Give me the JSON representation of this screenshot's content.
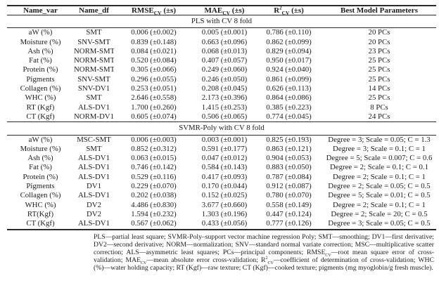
{
  "colors": {
    "background": "#ffffff",
    "text": "#1c1c1c",
    "rule": "#2a2a2a"
  },
  "table": {
    "column_keys": [
      "name_var",
      "name_df",
      "rmse_cv",
      "mae_cv",
      "r2_cv",
      "best_model_parameters"
    ],
    "columns": [
      {
        "segments": [
          {
            "t": "Name_var"
          }
        ]
      },
      {
        "segments": [
          {
            "t": "Name_df"
          }
        ]
      },
      {
        "segments": [
          {
            "t": "RMSE"
          },
          {
            "t": "CV",
            "s": "sub"
          },
          {
            "t": " (±s)"
          }
        ]
      },
      {
        "segments": [
          {
            "t": "MAE"
          },
          {
            "t": "CV",
            "s": "sub"
          },
          {
            "t": " (±s)"
          }
        ]
      },
      {
        "segments": [
          {
            "t": "R"
          },
          {
            "t": "2",
            "s": "sup"
          },
          {
            "t": "CV",
            "s": "sub"
          },
          {
            "t": " (±s)"
          }
        ]
      },
      {
        "segments": [
          {
            "t": "Best Model Parameters"
          }
        ]
      }
    ],
    "sections": [
      {
        "title": "PLS with CV 8 fold",
        "rows": [
          [
            "aW (%)",
            "SMT",
            "0.006 (±0.002)",
            "0.005 (±0.001)",
            "0.786 (±0.110)",
            "20 PCs"
          ],
          [
            "Moisture (%)",
            "SNV-SMT",
            "0.839 (±0.148)",
            "0.663 (±0.096)",
            "0.862 (±0.099)",
            "20 PCs"
          ],
          [
            "Ash (%)",
            "NORM-SMT",
            "0.084 (±0.021)",
            "0.068 (±0.013)",
            "0.829 (±0.094)",
            "23 PCs"
          ],
          [
            "Fat (%)",
            "NORM-SMT",
            "0.520 (±0.084)",
            "0.407 (±0.057)",
            "0.950 (±0.017)",
            "25 PCs"
          ],
          [
            "Protein (%)",
            "NORM-SMT",
            "0.305 (±0.066)",
            "0.249 (±0.060)",
            "0.924 (±0.040)",
            "25 PCs"
          ],
          [
            "Pigments",
            "SNV-SMT",
            "0.296 (±0.055)",
            "0.246 (±0.050)",
            "0.861 (±0.099)",
            "25 PCs"
          ],
          [
            "Collagen (%)",
            "SNV-DV1",
            "0.253 (±0.051)",
            "0.208 (±0.045)",
            "0.626 (±0.113)",
            "14 PCs"
          ],
          [
            "WHC (%)",
            "SMT",
            "2.646 (±0.558)",
            "2.173 (±0.396)",
            "0.864 (±0.086)",
            "25 PCs"
          ],
          [
            "RT (Kgf)",
            "ALS-DV1",
            "1.700 (±0.260)",
            "1.415 (±0.253)",
            "0.385 (±0.223)",
            "8 PCs"
          ],
          [
            "CT (Kgf)",
            "NORM-DV1",
            "0.605 (±0.074)",
            "0.506 (±0.065)",
            "0.774 (±0.045)",
            "24 PCs"
          ]
        ]
      },
      {
        "title": "SVMR-Poly with CV 8 fold",
        "rows": [
          [
            "aW (%)",
            "MSC-SMT",
            "0.006 (±0.003)",
            "0.003 (±0.001)",
            "0.825 (±0.193)",
            "Degree = 3; Scale = 0.05; C = 1.3"
          ],
          [
            "Moisture (%)",
            "SMT",
            "0.852 (±0.312)",
            "0.591 (±0.177)",
            "0.863 (±0.121)",
            "Degree = 3; Scale = 0.1; C = 1"
          ],
          [
            "Ash (%)",
            "ALS-DV1",
            "0.063 (±0.015)",
            "0.047 (±0.012)",
            "0.904 (±0.053)",
            "Degree = 5; Scale = 0.007; C = 0.6"
          ],
          [
            "Fat (%)",
            "ALS-DV1",
            "0.746 (±0.142)",
            "0.584 (±0.143)",
            "0.883 (±0.050)",
            "Degree = 2; Scale = 0.1; C = 0.1"
          ],
          [
            "Protein (%)",
            "ALS-DV1",
            "0.529 (±0.116)",
            "0.417 (±0.093)",
            "0.787 (±0.084)",
            "Degree = 2; Scale = 0.1; C = 1"
          ],
          [
            "Pigments",
            "DV1",
            "0.229 (±0.070)",
            "0.170 (±0.044)",
            "0.912 (±0.087)",
            "Degree = 2; Scale = 0.05; C = 0.5"
          ],
          [
            "Collagen (%)",
            "ALS-DV1",
            "0.202 (±0.038)",
            "0.152 (±0.025)",
            "0.780 (±0.070)",
            "Degree = 5; Scale = 0.01; C = 0.5"
          ],
          [
            "WHC (%)",
            "DV2",
            "4.486 (±0.830)",
            "3.677 (±0.660)",
            "0.558 (±0.149)",
            "Degree = 2; Scale = 0.1; C = 1"
          ],
          [
            "RT(Kgf)",
            "DV2",
            "1.594 (±0.232)",
            "1.303 (±0.196)",
            "0.447 (±0.124)",
            "Degree = 2; Scale = 20; C = 0.5"
          ],
          [
            "CT (Kgf)",
            "ALS-DV1",
            "0.567 (±0.062)",
            "0.433 (±0.056)",
            "0.777 (±0.126)",
            "Degree = 3; Scale = 0.05; C = 0.5"
          ]
        ]
      }
    ]
  },
  "footnote": {
    "segments": [
      {
        "t": "PLS—partial least square; SVMR-Poly–support vector machine regression Poly; SMT—smoothing; DV1—first derivative; DV2—second derivative; NORM—normalization; SNV—standard normal variate correction; MSC—multiplicative scatter correction; ALS—asymmetric least squares; PCs—principal components; RMSE"
      },
      {
        "t": "CV",
        "s": "sub"
      },
      {
        "t": "—root mean square error of cross-validation; MAE"
      },
      {
        "t": "CV",
        "s": "sub"
      },
      {
        "t": "—mean absolute error cross-validation; R"
      },
      {
        "t": "2",
        "s": "sup"
      },
      {
        "t": "CV",
        "s": "sub"
      },
      {
        "t": "—coefficient of determination of cross-validation; WHC (%)—water holding capacity; RT (Kgf)—raw texture; CT (Kgf)—cooked texture; pigments (mg myoglobin/g fresh muscle)."
      }
    ]
  }
}
